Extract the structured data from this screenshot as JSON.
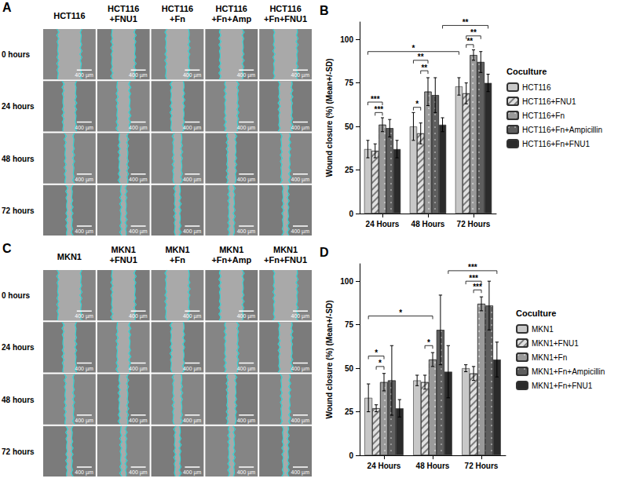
{
  "image_panels": [
    {
      "panel": "A",
      "columns": [
        "HCT116",
        "HCT116+FNU1",
        "HCT116+Fn",
        "HCT116+Fn+Amp",
        "HCT116+Fn+FNU1"
      ],
      "rows": [
        "0 hours",
        "24 hours",
        "48 hours",
        "72 hours"
      ],
      "scale_bar": "400 µm"
    },
    {
      "panel": "C",
      "columns": [
        "MKN1",
        "MKN1+FNU1",
        "MKN1+Fn",
        "MKN1+Fn+Amp",
        "MKN1+Fn+FNU1"
      ],
      "rows": [
        "0 hours",
        "24 hours",
        "48 hours",
        "72 hours"
      ],
      "scale_bar": "400 µm"
    }
  ],
  "chart_data": [
    {
      "type": "bar",
      "title": "B",
      "legend_title": "Coculture",
      "ylabel": "Wound closure (%) (Mean+/-SD)",
      "categories": [
        "24 Hours",
        "48 Hours",
        "72 Hours"
      ],
      "series": [
        {
          "name": "HCT116",
          "color": "#c8c8c8",
          "values": [
            37,
            50,
            73
          ],
          "errors": [
            5,
            8,
            5
          ]
        },
        {
          "name": "HCT116+FNU1",
          "color": "#e0e0e0",
          "values": [
            36,
            46,
            69
          ],
          "errors": [
            4,
            6,
            6
          ]
        },
        {
          "name": "HCT116+Fn",
          "color": "#9a9a9a",
          "values": [
            51,
            70,
            91
          ],
          "errors": [
            4,
            8,
            3
          ]
        },
        {
          "name": "HCT116+Fn+Ampicillin",
          "color": "#5e5e5e",
          "values": [
            49,
            68,
            87
          ],
          "errors": [
            5,
            10,
            6
          ]
        },
        {
          "name": "HCT116+Fn+FNU1",
          "color": "#2b2b2b",
          "values": [
            37,
            51,
            75
          ],
          "errors": [
            5,
            4,
            5
          ]
        }
      ],
      "ylim": [
        0,
        110
      ],
      "yticks": [
        0,
        25,
        50,
        75,
        100
      ],
      "grid": false,
      "legend": "right",
      "annotations": [
        {
          "label": "***",
          "from": [
            "24 Hours",
            "HCT116+FNU1"
          ],
          "to": [
            "24 Hours",
            "HCT116+Fn"
          ],
          "y": 58
        },
        {
          "label": "***",
          "from": [
            "24 Hours",
            "HCT116"
          ],
          "to": [
            "24 Hours",
            "HCT116+Fn"
          ],
          "y": 64
        },
        {
          "label": "*",
          "from": [
            "48 Hours",
            "HCT116"
          ],
          "to": [
            "48 Hours",
            "HCT116+FNU1"
          ],
          "y": 61
        },
        {
          "label": "**",
          "from": [
            "48 Hours",
            "HCT116+FNU1"
          ],
          "to": [
            "48 Hours",
            "HCT116+Fn"
          ],
          "y": 82
        },
        {
          "label": "**",
          "from": [
            "48 Hours",
            "HCT116"
          ],
          "to": [
            "48 Hours",
            "HCT116+Fn"
          ],
          "y": 88
        },
        {
          "label": "**",
          "from": [
            "72 Hours",
            "HCT116+FNU1"
          ],
          "to": [
            "72 Hours",
            "HCT116+Fn"
          ],
          "y": 97
        },
        {
          "label": "**",
          "from": [
            "72 Hours",
            "HCT116+FNU1"
          ],
          "to": [
            "72 Hours",
            "HCT116+Fn+Ampicillin"
          ],
          "y": 102
        },
        {
          "label": "*",
          "from": [
            "24 Hours",
            "HCT116"
          ],
          "to": [
            "72 Hours",
            "HCT116"
          ],
          "y": 93
        },
        {
          "label": "**",
          "from": [
            "48 Hours",
            "HCT116+Fn+FNU1"
          ],
          "to": [
            "72 Hours",
            "HCT116+Fn+FNU1"
          ],
          "y": 108
        }
      ]
    },
    {
      "type": "bar",
      "title": "D",
      "legend_title": "Coculture",
      "ylabel": "Wound closure (%) (Mean+/-SD)",
      "categories": [
        "24 Hours",
        "48 Hours",
        "72 Hours"
      ],
      "series": [
        {
          "name": "MKN1",
          "color": "#c8c8c8",
          "values": [
            33,
            43,
            50
          ],
          "errors": [
            8,
            3,
            2
          ]
        },
        {
          "name": "MKN1+FNU1",
          "color": "#e0e0e0",
          "values": [
            27,
            42,
            47
          ],
          "errors": [
            2,
            4,
            4
          ]
        },
        {
          "name": "MKN1+Fn",
          "color": "#9a9a9a",
          "values": [
            42,
            55,
            87
          ],
          "errors": [
            5,
            4,
            4
          ]
        },
        {
          "name": "MKN1+Fn+Ampicillin",
          "color": "#5e5e5e",
          "values": [
            43,
            72,
            86
          ],
          "errors": [
            20,
            20,
            14
          ]
        },
        {
          "name": "MKN1+Fn+FNU1",
          "color": "#2b2b2b",
          "values": [
            27,
            48,
            55
          ],
          "errors": [
            5,
            15,
            10
          ]
        }
      ],
      "ylim": [
        0,
        110
      ],
      "yticks": [
        0,
        25,
        50,
        75,
        100
      ],
      "grid": false,
      "legend": "right",
      "annotations": [
        {
          "label": "*",
          "from": [
            "24 Hours",
            "MKN1+FNU1"
          ],
          "to": [
            "24 Hours",
            "MKN1+Fn"
          ],
          "y": 51
        },
        {
          "label": "*",
          "from": [
            "24 Hours",
            "MKN1"
          ],
          "to": [
            "24 Hours",
            "MKN1+Fn"
          ],
          "y": 57
        },
        {
          "label": "*",
          "from": [
            "48 Hours",
            "MKN1+FNU1"
          ],
          "to": [
            "48 Hours",
            "MKN1+Fn"
          ],
          "y": 63
        },
        {
          "label": "***",
          "from": [
            "72 Hours",
            "MKN1+FNU1"
          ],
          "to": [
            "72 Hours",
            "MKN1+Fn"
          ],
          "y": 95
        },
        {
          "label": "***",
          "from": [
            "72 Hours",
            "MKN1"
          ],
          "to": [
            "72 Hours",
            "MKN1+Fn"
          ],
          "y": 100
        },
        {
          "label": "*",
          "from": [
            "24 Hours",
            "MKN1"
          ],
          "to": [
            "48 Hours",
            "MKN1+Fn"
          ],
          "y": 80
        },
        {
          "label": "***",
          "from": [
            "48 Hours",
            "MKN1+Fn+FNU1"
          ],
          "to": [
            "72 Hours",
            "MKN1+Fn+FNU1"
          ],
          "y": 106
        }
      ]
    }
  ]
}
